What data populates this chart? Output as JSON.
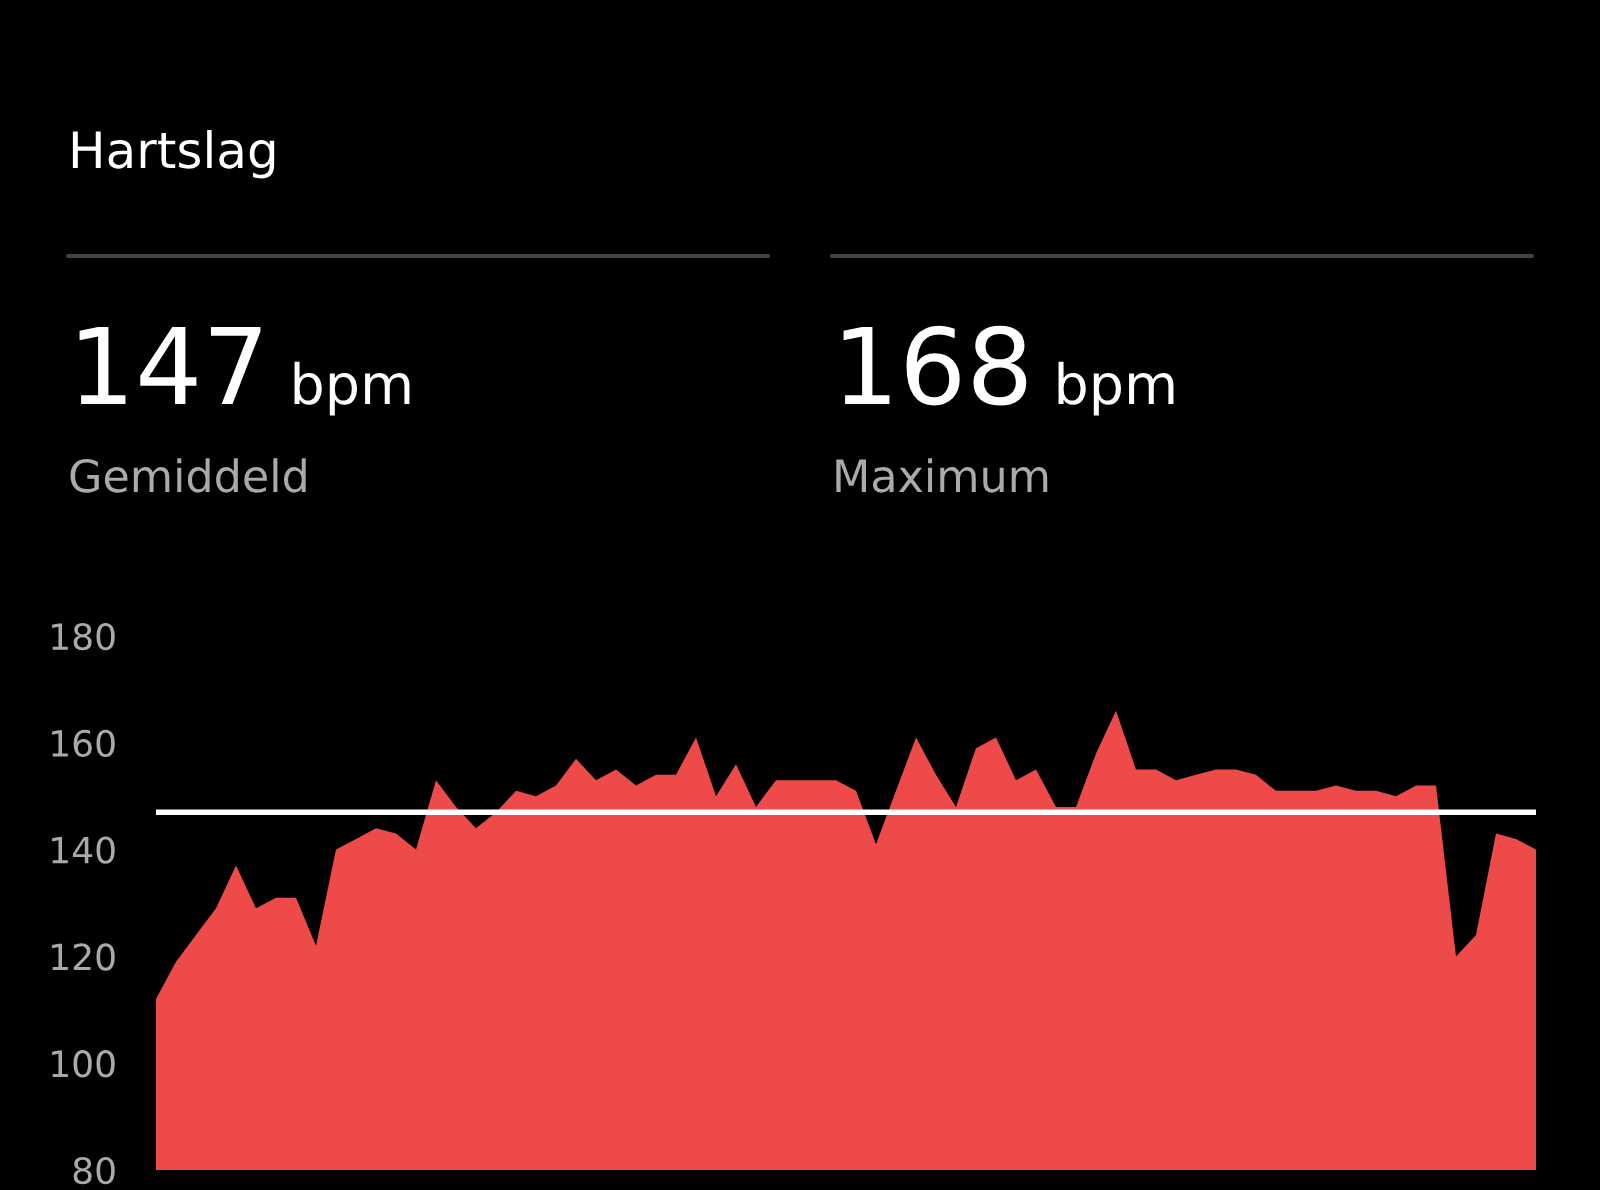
{
  "chart_data": {
    "type": "area",
    "title": "Hartslag",
    "annotations": [
      "147",
      "bpm",
      "Gemiddeld",
      "168",
      "bpm",
      "Maximum"
    ],
    "categories": [
      null,
      null,
      null,
      null,
      null,
      null,
      null,
      null,
      null,
      null,
      null,
      null,
      null,
      null,
      null,
      null,
      null,
      null,
      null,
      null,
      null,
      null,
      null,
      null,
      null,
      null,
      null,
      null,
      null,
      null,
      null,
      null,
      null,
      null,
      null,
      null,
      null,
      null,
      null,
      null,
      null,
      null,
      null,
      null,
      null,
      null,
      null,
      null,
      null,
      null,
      null,
      null,
      null,
      null,
      null,
      null,
      null,
      null,
      null,
      null,
      null,
      null,
      null,
      null,
      null,
      null,
      null,
      null,
      null,
      null
    ],
    "series": [
      {
        "color": "#ee4a4a",
        "values": [
          112,
          119,
          124,
          129,
          137,
          129,
          131,
          131,
          122,
          140,
          142,
          144,
          143,
          140,
          153,
          148,
          144,
          147,
          151,
          150,
          152,
          157,
          153,
          155,
          152,
          154,
          154,
          161,
          150,
          156,
          148,
          153,
          153,
          153,
          153,
          151,
          141,
          151,
          161,
          154,
          148,
          159,
          161,
          153,
          155,
          148,
          148,
          158,
          166,
          155,
          155,
          153,
          154,
          155,
          155,
          154,
          151,
          151,
          151,
          152,
          151,
          151,
          150,
          152,
          152,
          120,
          124,
          143,
          142,
          140
        ]
      }
    ],
    "ylim": [
      80,
      180
    ],
    "yticks": [
      80,
      100,
      120,
      140,
      160,
      180
    ],
    "grid": false,
    "legend": false,
    "ref_lines": [
      {
        "axis": "y",
        "value": 147,
        "color": "#ffffff"
      }
    ]
  }
}
